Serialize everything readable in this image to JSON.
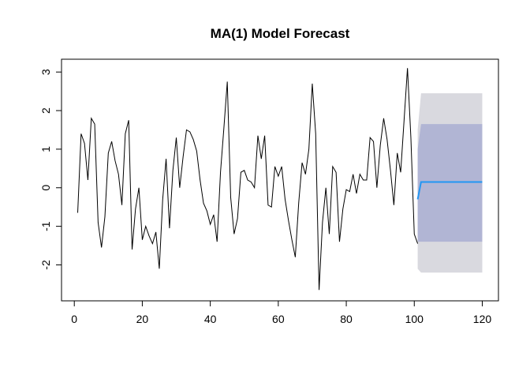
{
  "chart_data": {
    "type": "line",
    "title": "MA(1) Model Forecast",
    "xlabel": "",
    "ylabel": "",
    "xlim": [
      1,
      120
    ],
    "ylim": [
      -2.7,
      3.1
    ],
    "x_ticks": [
      0,
      20,
      40,
      60,
      80,
      100,
      120
    ],
    "y_ticks": [
      -2,
      -1,
      0,
      1,
      2,
      3
    ],
    "x_tick_labels": [
      "0",
      "20",
      "40",
      "60",
      "80",
      "100",
      "120"
    ],
    "y_tick_labels": [
      "-2",
      "-1",
      "0",
      "1",
      "2",
      "3"
    ],
    "grid": false,
    "legend": "none",
    "colors": {
      "observed": "#000000",
      "forecast": "#2196f3",
      "band80": "#b1b5d4",
      "band95": "#d9d9df"
    },
    "series": [
      {
        "values": [
          -0.65,
          1.4,
          1.15,
          0.2,
          1.8,
          1.65,
          -0.9,
          -1.55,
          -0.75,
          0.9,
          1.2,
          0.7,
          0.35,
          -0.45,
          1.4,
          1.75,
          -1.6,
          -0.55,
          0.0,
          -1.35,
          -1.0,
          -1.25,
          -1.45,
          -1.15,
          -2.1,
          -0.3,
          0.75,
          -1.05,
          0.45,
          1.3,
          0.0,
          0.8,
          1.5,
          1.45,
          1.25,
          0.95,
          0.2,
          -0.4,
          -0.6,
          -0.95,
          -0.7,
          -1.4,
          0.4,
          1.55,
          2.75,
          -0.25,
          -1.2,
          -0.8,
          0.4,
          0.45,
          0.2,
          0.15,
          0.0,
          1.35,
          0.75,
          1.35,
          -0.45,
          -0.5,
          0.55,
          0.3,
          0.55,
          -0.3,
          -0.85,
          -1.35,
          -1.8,
          -0.4,
          0.65,
          0.35,
          1.0,
          2.7,
          1.4,
          -2.65,
          -0.9,
          0.0,
          -1.2,
          0.55,
          0.4,
          -1.4,
          -0.55,
          -0.05,
          -0.1,
          0.35,
          -0.15,
          0.35,
          0.2,
          0.2,
          1.3,
          1.2,
          0.0,
          1.1,
          1.8,
          1.25,
          0.45,
          -0.45,
          0.9,
          0.4,
          1.75,
          3.1,
          1.3,
          -1.2,
          -1.45
        ]
      },
      {
        "x_start": 101,
        "values": [
          -0.3,
          0.15,
          0.15,
          0.15,
          0.15,
          0.15,
          0.15,
          0.15,
          0.15,
          0.15,
          0.15,
          0.15,
          0.15,
          0.15,
          0.15,
          0.15,
          0.15,
          0.15,
          0.15,
          0.15
        ],
        "lower80": [
          -1.4,
          -1.4,
          -1.4,
          -1.4,
          -1.4,
          -1.4,
          -1.4,
          -1.4,
          -1.4,
          -1.4,
          -1.4,
          -1.4,
          -1.4,
          -1.4,
          -1.4,
          -1.4,
          -1.4,
          -1.4,
          -1.4,
          -1.4
        ],
        "upper80": [
          1.0,
          1.65,
          1.65,
          1.65,
          1.65,
          1.65,
          1.65,
          1.65,
          1.65,
          1.65,
          1.65,
          1.65,
          1.65,
          1.65,
          1.65,
          1.65,
          1.65,
          1.65,
          1.65,
          1.65
        ],
        "lower95": [
          -2.1,
          -2.2,
          -2.2,
          -2.2,
          -2.2,
          -2.2,
          -2.2,
          -2.2,
          -2.2,
          -2.2,
          -2.2,
          -2.2,
          -2.2,
          -2.2,
          -2.2,
          -2.2,
          -2.2,
          -2.2,
          -2.2,
          -2.2
        ],
        "upper95": [
          1.5,
          2.45,
          2.45,
          2.45,
          2.45,
          2.45,
          2.45,
          2.45,
          2.45,
          2.45,
          2.45,
          2.45,
          2.45,
          2.45,
          2.45,
          2.45,
          2.45,
          2.45,
          2.45,
          2.45
        ]
      }
    ]
  }
}
